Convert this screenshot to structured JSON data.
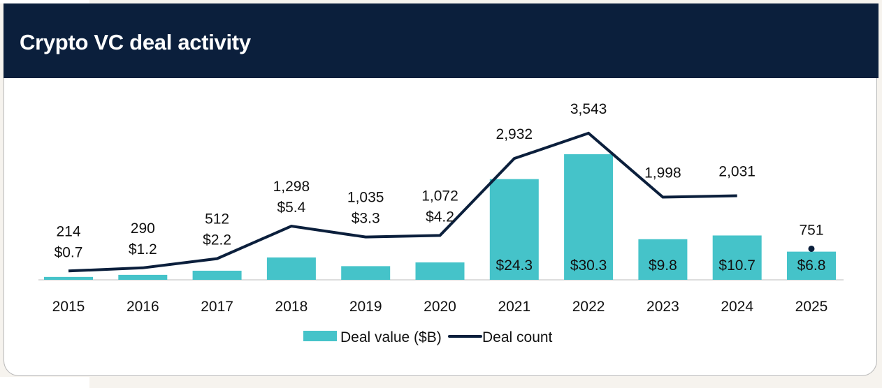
{
  "header": {
    "title": "Crypto VC deal activity"
  },
  "chart_data": {
    "type": "bar+line",
    "title": "Crypto VC deal activity",
    "categories": [
      "2015",
      "2016",
      "2017",
      "2018",
      "2019",
      "2020",
      "2021",
      "2022",
      "2023",
      "2024",
      "2025"
    ],
    "series": [
      {
        "name": "Deal value ($B)",
        "type": "bar",
        "color": "#45c3c9",
        "values": [
          0.7,
          1.2,
          2.2,
          5.4,
          3.3,
          4.2,
          24.3,
          30.3,
          9.8,
          10.7,
          6.8
        ],
        "labels": [
          "$0.7",
          "$1.2",
          "$2.2",
          "$5.4",
          "$3.3",
          "$4.2",
          "$24.3",
          "$30.3",
          "$9.8",
          "$10.7",
          "$6.8"
        ]
      },
      {
        "name": "Deal count",
        "type": "line",
        "color": "#0b1f3c",
        "values": [
          214,
          290,
          512,
          1298,
          1035,
          1072,
          2932,
          3543,
          1998,
          2031,
          751
        ],
        "labels": [
          "214",
          "290",
          "512",
          "1,298",
          "1,035",
          "1,072",
          "2,932",
          "3,543",
          "1,998",
          "2,031",
          "751"
        ]
      }
    ],
    "legend": "bottom",
    "grid": false
  }
}
